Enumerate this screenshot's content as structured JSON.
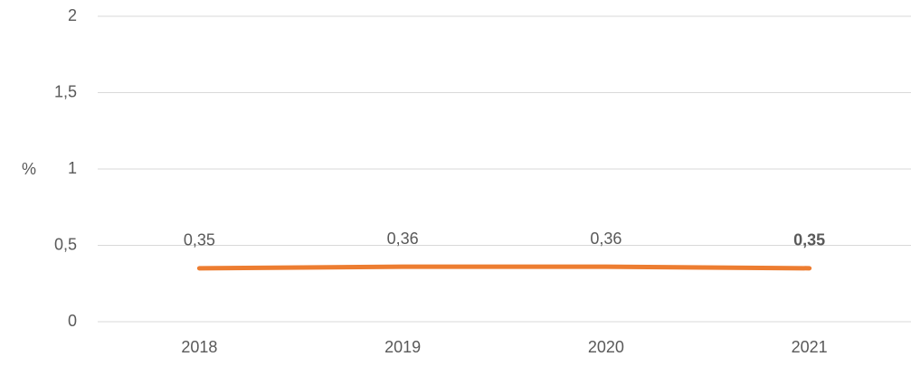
{
  "chart_data": {
    "type": "line",
    "y_label": "%",
    "categories": [
      "2018",
      "2019",
      "2020",
      "2021"
    ],
    "series": [
      {
        "name": "%",
        "color": "#ed7d31",
        "values": [
          0.35,
          0.36,
          0.36,
          0.35
        ],
        "value_labels": [
          "0,35",
          "0,36",
          "0,36",
          "0,35"
        ],
        "value_label_bold": [
          false,
          false,
          false,
          true
        ]
      }
    ],
    "ylim": [
      0,
      2
    ],
    "yticks": [
      0,
      {
        "value": 0.5,
        "label": "0,5"
      },
      1,
      {
        "value": 1.5,
        "label": "1,5"
      },
      2
    ],
    "grid": true
  }
}
